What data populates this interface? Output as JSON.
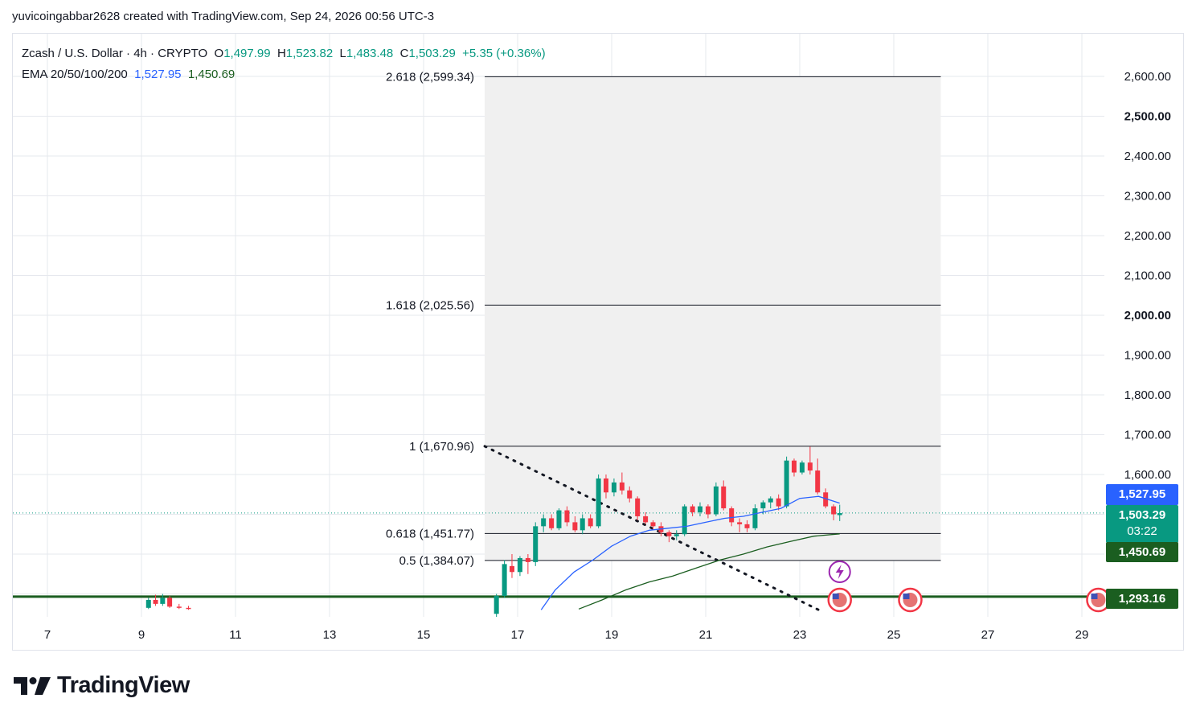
{
  "header": {
    "text": "yuvicoingabbar2628 created with TradingView.com, Sep 24, 2026 00:56 UTC-3"
  },
  "legend": {
    "symbol": "Zcash / U.S. Dollar · 4h · CRYPTO",
    "o_label": "O",
    "o_value": "1,497.99",
    "h_label": "H",
    "h_value": "1,523.82",
    "l_label": "L",
    "l_value": "1,483.48",
    "c_label": "C",
    "c_value": "1,503.29",
    "change": "+5.35 (+0.36%)",
    "ema_label": "EMA 20/50/100/200",
    "ema1": "1,527.95",
    "ema2": "1,450.69"
  },
  "colors": {
    "up": "#089981",
    "down": "#f23645",
    "ema20": "#2962ff",
    "ema50": "#1b5e20",
    "hline": "#1b5e20",
    "fib_bg": "#f0f0f0",
    "grid": "#e6e8ee"
  },
  "price_labels": {
    "ema20": "1,527.95",
    "last": "1,503.29",
    "countdown": "03:22",
    "ema50": "1,450.69",
    "hline": "1,293.16"
  },
  "fib_labels": [
    {
      "text": "2.618 (2,599.34)",
      "price": 2599.34
    },
    {
      "text": "1.618 (2,025.56)",
      "price": 2025.56
    },
    {
      "text": "1 (1,670.96)",
      "price": 1670.96
    },
    {
      "text": "0.618 (1,451.77)",
      "price": 1451.77
    },
    {
      "text": "0.5 (1,384.07)",
      "price": 1384.07
    }
  ],
  "chart_data": {
    "type": "candlestick",
    "y_tick_labels": [
      "2,600.00",
      "2,500.00",
      "2,400.00",
      "2,300.00",
      "2,200.00",
      "2,100.00",
      "2,000.00",
      "1,900.00",
      "1,800.00",
      "1,700.00",
      "1,600.00"
    ],
    "y_ticks": [
      2600,
      2500,
      2400,
      2300,
      2200,
      2100,
      2000,
      1900,
      1800,
      1700,
      1600
    ],
    "x_tick_labels": [
      "7",
      "9",
      "11",
      "13",
      "15",
      "17",
      "19",
      "21",
      "23",
      "25",
      "27",
      "29"
    ],
    "x_ticks": [
      7,
      9,
      11,
      13,
      15,
      17,
      19,
      21,
      23,
      25,
      27,
      29
    ],
    "ylim": [
      1260,
      2700
    ],
    "xlim": [
      6.25,
      29.5
    ],
    "candles": [
      {
        "t": 16.55,
        "o": 1250,
        "h": 1300,
        "l": 1240,
        "c": 1295
      },
      {
        "t": 16.72,
        "o": 1295,
        "h": 1385,
        "l": 1290,
        "c": 1375
      },
      {
        "t": 16.88,
        "o": 1370,
        "h": 1400,
        "l": 1340,
        "c": 1355
      },
      {
        "t": 17.05,
        "o": 1355,
        "h": 1395,
        "l": 1345,
        "c": 1390
      },
      {
        "t": 17.22,
        "o": 1390,
        "h": 1400,
        "l": 1350,
        "c": 1380
      },
      {
        "t": 17.38,
        "o": 1380,
        "h": 1480,
        "l": 1370,
        "c": 1470
      },
      {
        "t": 17.55,
        "o": 1470,
        "h": 1500,
        "l": 1455,
        "c": 1490
      },
      {
        "t": 17.72,
        "o": 1490,
        "h": 1500,
        "l": 1460,
        "c": 1465
      },
      {
        "t": 17.88,
        "o": 1465,
        "h": 1515,
        "l": 1460,
        "c": 1510
      },
      {
        "t": 18.05,
        "o": 1510,
        "h": 1520,
        "l": 1470,
        "c": 1480
      },
      {
        "t": 18.22,
        "o": 1480,
        "h": 1495,
        "l": 1455,
        "c": 1460
      },
      {
        "t": 18.38,
        "o": 1460,
        "h": 1500,
        "l": 1450,
        "c": 1490
      },
      {
        "t": 18.55,
        "o": 1490,
        "h": 1500,
        "l": 1465,
        "c": 1470
      },
      {
        "t": 18.72,
        "o": 1470,
        "h": 1600,
        "l": 1465,
        "c": 1590
      },
      {
        "t": 18.88,
        "o": 1590,
        "h": 1600,
        "l": 1540,
        "c": 1555
      },
      {
        "t": 19.05,
        "o": 1555,
        "h": 1590,
        "l": 1545,
        "c": 1580
      },
      {
        "t": 19.22,
        "o": 1580,
        "h": 1605,
        "l": 1550,
        "c": 1560
      },
      {
        "t": 19.38,
        "o": 1560,
        "h": 1570,
        "l": 1530,
        "c": 1540
      },
      {
        "t": 19.55,
        "o": 1540,
        "h": 1545,
        "l": 1485,
        "c": 1495
      },
      {
        "t": 19.72,
        "o": 1495,
        "h": 1505,
        "l": 1475,
        "c": 1480
      },
      {
        "t": 19.88,
        "o": 1480,
        "h": 1485,
        "l": 1460,
        "c": 1470
      },
      {
        "t": 20.05,
        "o": 1470,
        "h": 1480,
        "l": 1445,
        "c": 1455
      },
      {
        "t": 20.22,
        "o": 1455,
        "h": 1460,
        "l": 1430,
        "c": 1445
      },
      {
        "t": 20.38,
        "o": 1445,
        "h": 1460,
        "l": 1435,
        "c": 1450
      },
      {
        "t": 20.55,
        "o": 1450,
        "h": 1525,
        "l": 1445,
        "c": 1520
      },
      {
        "t": 20.72,
        "o": 1520,
        "h": 1525,
        "l": 1495,
        "c": 1505
      },
      {
        "t": 20.88,
        "o": 1505,
        "h": 1530,
        "l": 1495,
        "c": 1520
      },
      {
        "t": 21.05,
        "o": 1520,
        "h": 1525,
        "l": 1490,
        "c": 1500
      },
      {
        "t": 21.22,
        "o": 1500,
        "h": 1580,
        "l": 1495,
        "c": 1570
      },
      {
        "t": 21.38,
        "o": 1570,
        "h": 1585,
        "l": 1510,
        "c": 1515
      },
      {
        "t": 21.55,
        "o": 1515,
        "h": 1520,
        "l": 1470,
        "c": 1480
      },
      {
        "t": 21.72,
        "o": 1480,
        "h": 1490,
        "l": 1455,
        "c": 1475
      },
      {
        "t": 21.88,
        "o": 1475,
        "h": 1485,
        "l": 1455,
        "c": 1465
      },
      {
        "t": 22.05,
        "o": 1465,
        "h": 1525,
        "l": 1460,
        "c": 1515
      },
      {
        "t": 22.22,
        "o": 1515,
        "h": 1535,
        "l": 1500,
        "c": 1530
      },
      {
        "t": 22.38,
        "o": 1530,
        "h": 1545,
        "l": 1515,
        "c": 1540
      },
      {
        "t": 22.55,
        "o": 1540,
        "h": 1550,
        "l": 1510,
        "c": 1520
      },
      {
        "t": 22.72,
        "o": 1520,
        "h": 1645,
        "l": 1515,
        "c": 1635
      },
      {
        "t": 22.88,
        "o": 1635,
        "h": 1640,
        "l": 1595,
        "c": 1605
      },
      {
        "t": 23.05,
        "o": 1605,
        "h": 1635,
        "l": 1600,
        "c": 1630
      },
      {
        "t": 23.22,
        "o": 1630,
        "h": 1670,
        "l": 1600,
        "c": 1610
      },
      {
        "t": 23.38,
        "o": 1610,
        "h": 1640,
        "l": 1550,
        "c": 1555
      },
      {
        "t": 23.55,
        "o": 1555,
        "h": 1565,
        "l": 1515,
        "c": 1520
      },
      {
        "t": 23.72,
        "o": 1520,
        "h": 1525,
        "l": 1485,
        "c": 1500
      },
      {
        "t": 23.85,
        "o": 1498,
        "h": 1524,
        "l": 1483,
        "c": 1503
      }
    ],
    "left_candles": [
      {
        "t": 9.15,
        "o": 1265,
        "h": 1290,
        "l": 1262,
        "c": 1285
      },
      {
        "t": 9.3,
        "o": 1285,
        "h": 1298,
        "l": 1270,
        "c": 1275
      },
      {
        "t": 9.45,
        "o": 1275,
        "h": 1300,
        "l": 1270,
        "c": 1290
      },
      {
        "t": 9.6,
        "o": 1290,
        "h": 1295,
        "l": 1265,
        "c": 1268
      },
      {
        "t": 9.8,
        "o": 1268,
        "h": 1275,
        "l": 1262,
        "c": 1265
      },
      {
        "t": 10.0,
        "o": 1265,
        "h": 1270,
        "l": 1260,
        "c": 1262
      }
    ],
    "ema20": [
      [
        17.5,
        1260
      ],
      [
        17.8,
        1310
      ],
      [
        18.2,
        1355
      ],
      [
        18.6,
        1385
      ],
      [
        19.0,
        1420
      ],
      [
        19.4,
        1445
      ],
      [
        19.8,
        1460
      ],
      [
        20.2,
        1465
      ],
      [
        20.6,
        1470
      ],
      [
        21.0,
        1480
      ],
      [
        21.4,
        1490
      ],
      [
        21.8,
        1495
      ],
      [
        22.2,
        1505
      ],
      [
        22.6,
        1515
      ],
      [
        23.0,
        1540
      ],
      [
        23.4,
        1545
      ],
      [
        23.85,
        1528
      ]
    ],
    "ema50": [
      [
        18.3,
        1262
      ],
      [
        18.8,
        1285
      ],
      [
        19.3,
        1310
      ],
      [
        19.8,
        1330
      ],
      [
        20.3,
        1345
      ],
      [
        20.8,
        1365
      ],
      [
        21.3,
        1385
      ],
      [
        21.8,
        1400
      ],
      [
        22.3,
        1418
      ],
      [
        22.8,
        1432
      ],
      [
        23.3,
        1445
      ],
      [
        23.85,
        1451
      ]
    ],
    "fib_range": {
      "t_start": 16.3,
      "t_end": 26.0
    },
    "trendline": [
      [
        16.3,
        1670.96
      ],
      [
        23.4,
        1260
      ]
    ],
    "hline": 1293.16,
    "last_price": 1503.29
  }
}
